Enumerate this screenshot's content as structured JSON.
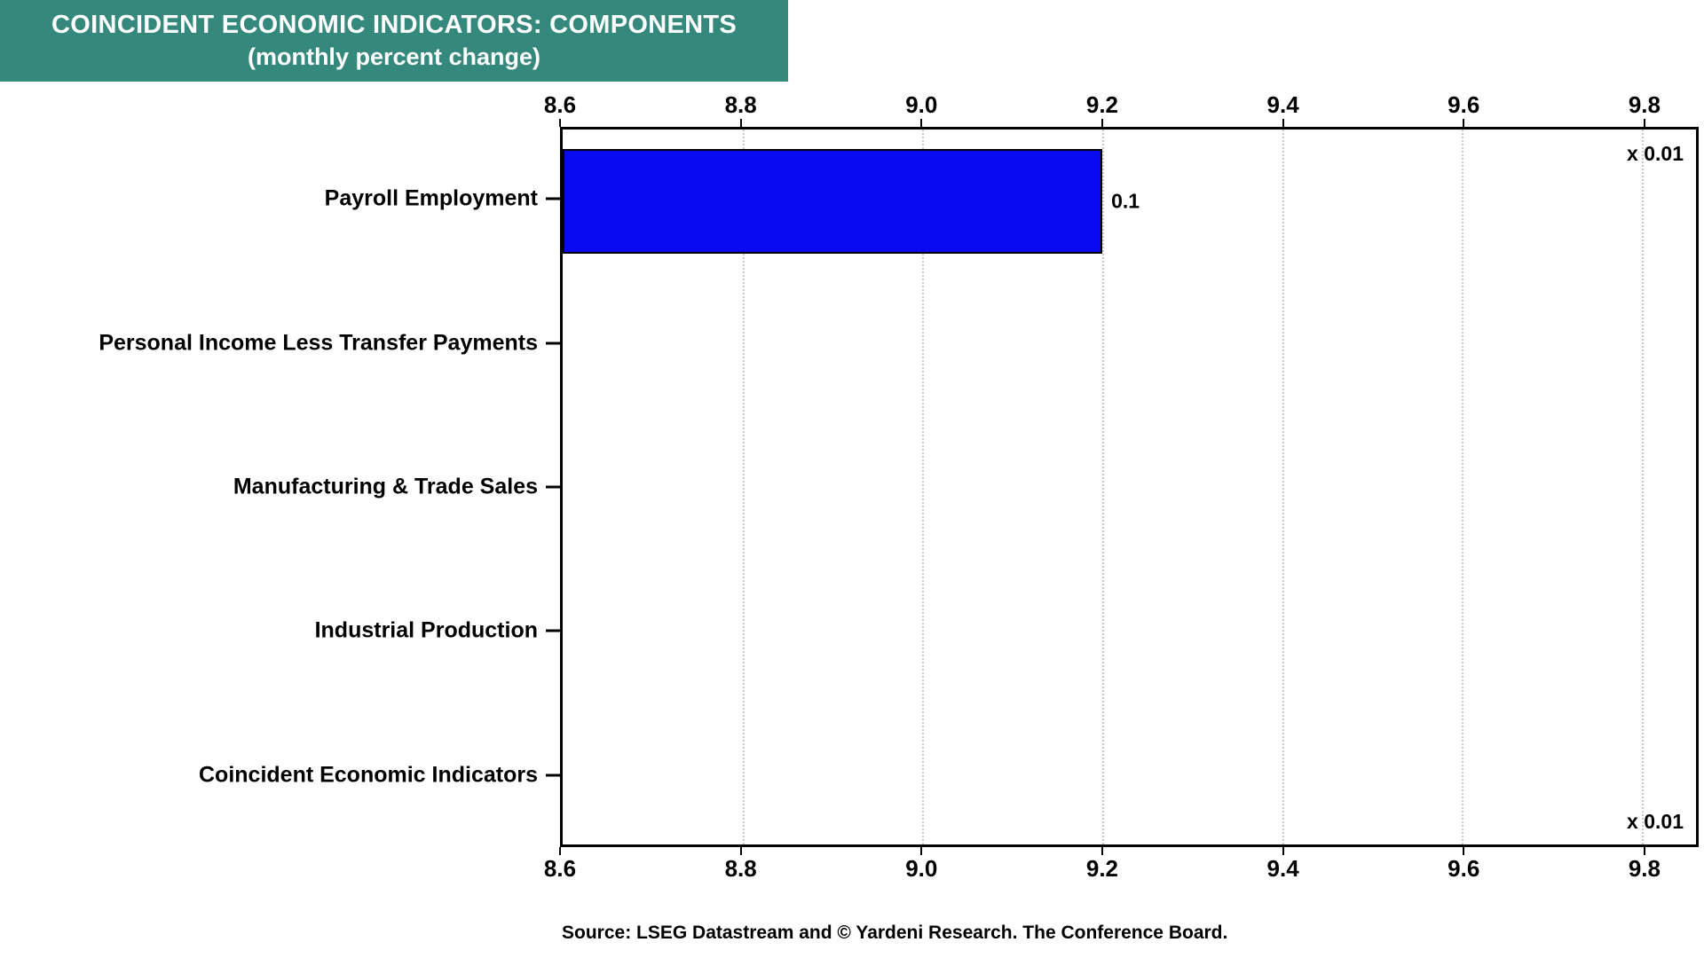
{
  "header": {
    "bg_color": "#35897c"
  },
  "chart_data": {
    "type": "bar",
    "orientation": "horizontal",
    "title": "COINCIDENT ECONOMIC INDICATORS: COMPONENTS",
    "subtitle": "(monthly percent change)",
    "categories": [
      "Payroll Employment",
      "Personal Income Less Transfer Payments",
      "Manufacturing & Trade Sales",
      "Industrial Production",
      "Coincident Economic Indicators"
    ],
    "series": [
      {
        "name": "monthly percent change",
        "values": [
          0.1,
          null,
          null,
          null,
          null
        ]
      }
    ],
    "bar_display": [
      {
        "index": 0,
        "label": "0.1",
        "extent": [
          8.6,
          9.2
        ]
      }
    ],
    "xlim": [
      8.6,
      9.86
    ],
    "xticks": [
      8.6,
      8.8,
      9.0,
      9.2,
      9.4,
      9.6,
      9.8
    ],
    "axis_multiplier_note": "x 0.01",
    "grid": true,
    "legend": "none",
    "bar_color": "#0a0af0",
    "source": "Source: LSEG Datastream and © Yardeni Research. The Conference Board."
  }
}
